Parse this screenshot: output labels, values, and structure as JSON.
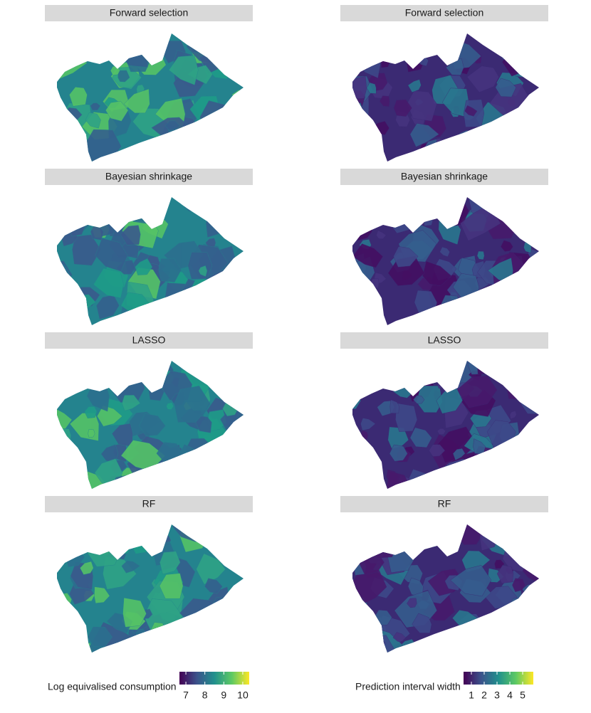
{
  "panels": [
    {
      "title": "Forward selection",
      "column": "consumption"
    },
    {
      "title": "Forward selection",
      "column": "interval"
    },
    {
      "title": "Bayesian shrinkage",
      "column": "consumption"
    },
    {
      "title": "Bayesian shrinkage",
      "column": "interval"
    },
    {
      "title": "LASSO",
      "column": "consumption"
    },
    {
      "title": "LASSO",
      "column": "interval"
    },
    {
      "title": "RF",
      "column": "consumption"
    },
    {
      "title": "RF",
      "column": "interval"
    }
  ],
  "legends": [
    {
      "title": "Log equivalised consumption",
      "range": [
        6.66,
        10.34
      ],
      "ticks": [
        7,
        8,
        9,
        10
      ]
    },
    {
      "title": "Prediction interval width",
      "range": [
        0.39,
        5.83
      ],
      "ticks": [
        1,
        2,
        3,
        4,
        5
      ]
    }
  ]
}
